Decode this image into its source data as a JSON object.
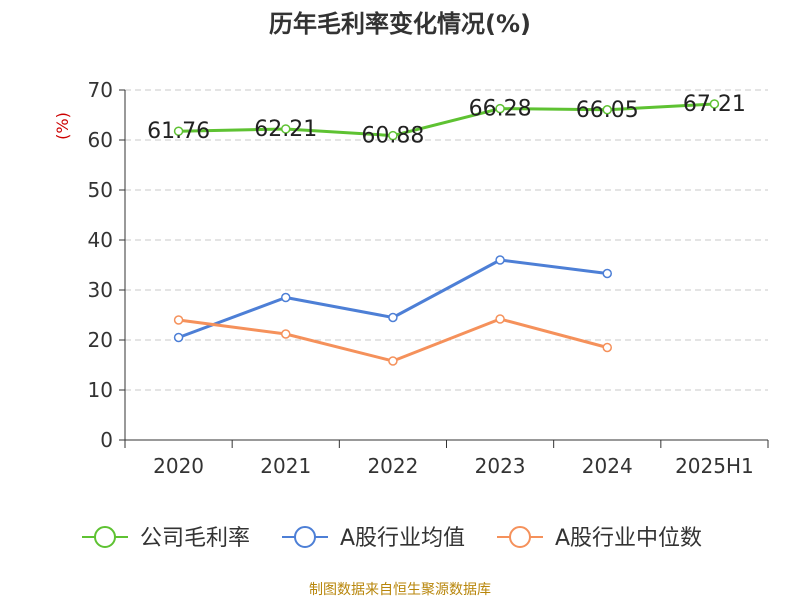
{
  "chart_data": {
    "type": "line",
    "title": "历年毛利率变化情况(%)",
    "ylabel": "(%)",
    "xlabel": "",
    "ylim": [
      0,
      70
    ],
    "yticks": [
      0,
      10,
      20,
      30,
      40,
      50,
      60,
      70
    ],
    "grid": true,
    "legend_position": "bottom",
    "categories": [
      "2020",
      "2021",
      "2022",
      "2023",
      "2024",
      "2025H1"
    ],
    "series": [
      {
        "name": "公司毛利率",
        "color": "#5ec232",
        "values": [
          61.76,
          62.21,
          60.88,
          66.28,
          66.05,
          67.21
        ],
        "labels": [
          "61.76",
          "62.21",
          "60.88",
          "66.28",
          "66.05",
          "67.21"
        ]
      },
      {
        "name": "A股行业均值",
        "color": "#4d7fd6",
        "values": [
          20.5,
          28.5,
          24.5,
          36.0,
          33.3,
          null
        ]
      },
      {
        "name": "A股行业中位数",
        "color": "#f5915b",
        "values": [
          24.0,
          21.2,
          15.8,
          24.2,
          18.5,
          null
        ]
      }
    ]
  },
  "source": "制图数据来自恒生聚源数据库"
}
